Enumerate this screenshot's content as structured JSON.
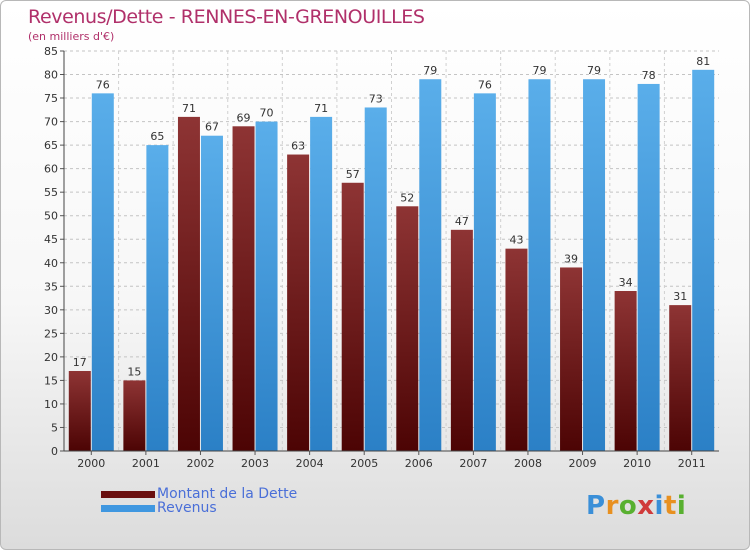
{
  "title": "Revenus/Dette - RENNES-EN-GRENOUILLES",
  "subtitle": "(en milliers d'€)",
  "colors": {
    "debt": "#7a1e1e",
    "revenue": "#4ea6e8",
    "title": "#b0306a",
    "legend_text": "#4a6fd8"
  },
  "legend": [
    {
      "label": "Montant de la Dette",
      "color": "#6a0f0f"
    },
    {
      "label": "Revenus",
      "color": "#3f97e0"
    }
  ],
  "logo": {
    "text": "Proxiti",
    "letter_colors": [
      "#3a8fd8",
      "#e89020",
      "#58b030",
      "#d03a3a",
      "#3a8fd8",
      "#e89020",
      "#58b030"
    ]
  },
  "chart_data": {
    "type": "bar",
    "categories": [
      "2000",
      "2001",
      "2002",
      "2003",
      "2004",
      "2005",
      "2006",
      "2007",
      "2008",
      "2009",
      "2010",
      "2011"
    ],
    "series": [
      {
        "name": "Montant de la Dette",
        "values": [
          17,
          15,
          71,
          69,
          63,
          57,
          52,
          47,
          43,
          39,
          34,
          31
        ]
      },
      {
        "name": "Revenus",
        "values": [
          76,
          65,
          67,
          70,
          71,
          73,
          79,
          76,
          79,
          79,
          78,
          81
        ]
      }
    ],
    "yticks": [
      0,
      5,
      10,
      15,
      20,
      25,
      30,
      35,
      40,
      45,
      50,
      55,
      60,
      65,
      70,
      75,
      80,
      85
    ],
    "ylim": [
      0,
      85
    ],
    "grid": true,
    "legend_position": "bottom-left"
  }
}
